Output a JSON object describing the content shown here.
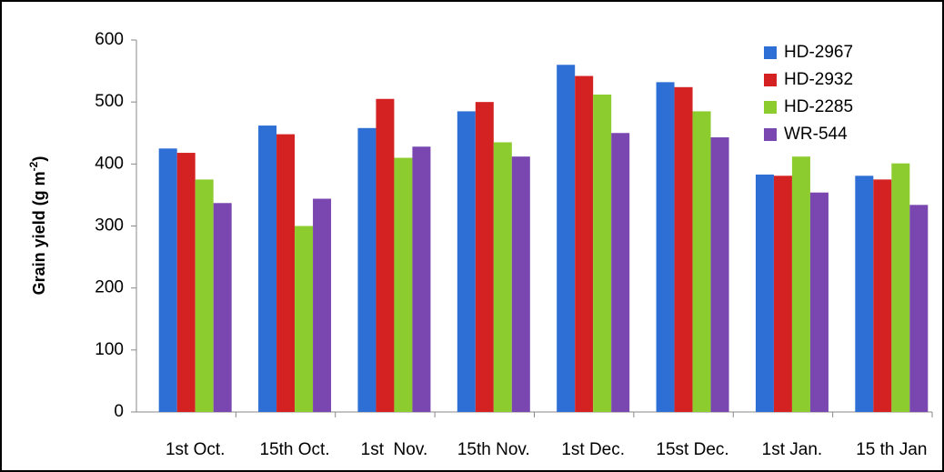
{
  "chart_data": {
    "type": "bar",
    "y_label": {
      "text": "Grain yield (g m",
      "sup": "-2",
      "end": ")"
    },
    "categories": [
      "1st Oct.",
      "15th Oct.",
      "1st  Nov.",
      "15th Nov.",
      "1st Dec.",
      "15st Dec.",
      "1st Jan.",
      "15 th Jan"
    ],
    "series": [
      {
        "name": "HD-2967",
        "color": "#2e6fd6",
        "values": [
          425,
          462,
          458,
          485,
          560,
          532,
          383,
          381
        ]
      },
      {
        "name": "HD-2932",
        "color": "#d42121",
        "values": [
          418,
          448,
          505,
          500,
          542,
          524,
          381,
          375
        ]
      },
      {
        "name": "HD-2285",
        "color": "#8ccc2e",
        "values": [
          375,
          300,
          410,
          435,
          512,
          485,
          412,
          401
        ]
      },
      {
        "name": "WR-544",
        "color": "#7a46b0",
        "values": [
          337,
          344,
          428,
          412,
          450,
          443,
          354,
          334
        ]
      }
    ],
    "ylim": [
      0,
      600
    ],
    "yticks": [
      0,
      100,
      200,
      300,
      400,
      500,
      600
    ],
    "grid": false,
    "legend": "top-right"
  }
}
